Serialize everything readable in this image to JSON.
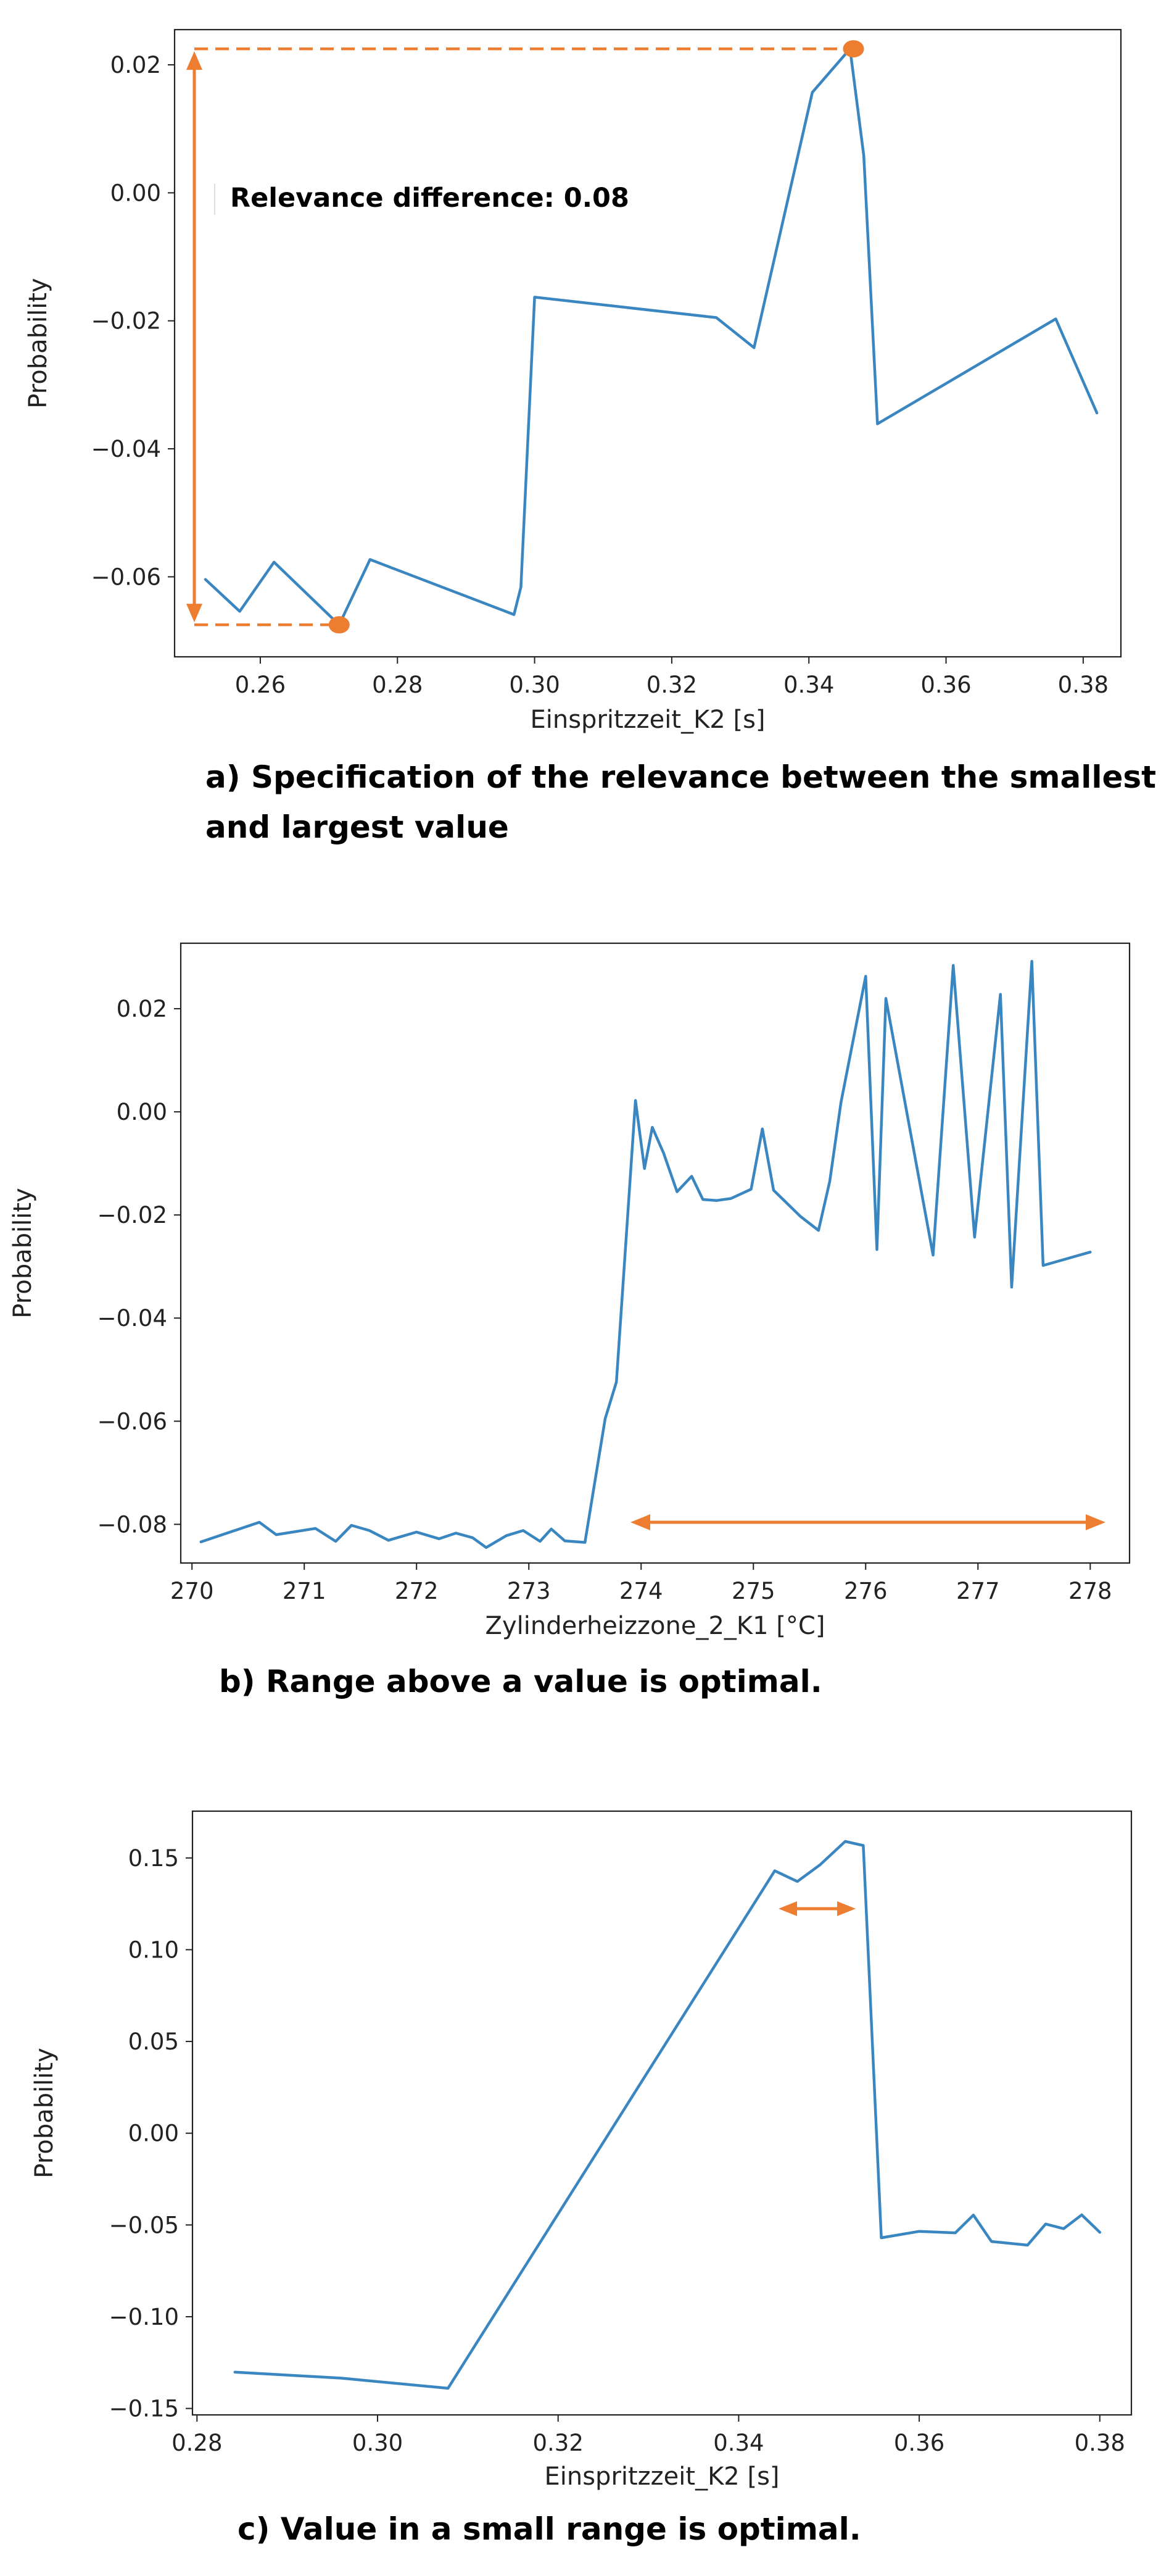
{
  "colors": {
    "series": "#3a86c0",
    "annotation": "#ed7d31",
    "axes": "#222222"
  },
  "chart_data": [
    {
      "type": "line",
      "panel": "a",
      "xlabel": "Einspritzzeit_K2 [s]",
      "ylabel": "Probability",
      "xlim": [
        0.2475,
        0.3855
      ],
      "ylim": [
        -0.0725,
        0.0255
      ],
      "xticks": [
        0.26,
        0.28,
        0.3,
        0.32,
        0.34,
        0.36,
        0.38
      ],
      "xtick_labels": [
        "0.26",
        "0.28",
        "0.30",
        "0.32",
        "0.34",
        "0.36",
        "0.38"
      ],
      "yticks": [
        -0.06,
        -0.04,
        -0.02,
        0.0,
        0.02
      ],
      "ytick_labels": [
        "−0.06",
        "−0.04",
        "−0.02",
        "0.00",
        "0.02"
      ],
      "series": [
        {
          "x": [
            0.252,
            0.257,
            0.262,
            0.2715,
            0.276,
            0.297,
            0.298,
            0.3,
            0.3265,
            0.332,
            0.3405,
            0.346,
            0.348,
            0.35,
            0.376,
            0.382
          ],
          "y": [
            -0.0604,
            -0.0654,
            -0.0577,
            -0.0675,
            -0.0573,
            -0.0659,
            -0.0616,
            -0.0163,
            -0.0195,
            -0.0242,
            0.0157,
            0.0225,
            0.0058,
            -0.0361,
            -0.0197,
            -0.0344
          ]
        }
      ],
      "markers": [
        {
          "x": 0.3465,
          "y": 0.0225
        },
        {
          "x": 0.2715,
          "y": -0.0675
        }
      ],
      "annotation_text": "Relevance difference: 0.08",
      "caption_lines": [
        "a) Specification of the relevance between the smallest",
        "and largest value"
      ]
    },
    {
      "type": "line",
      "panel": "b",
      "xlabel": "Zylinderheizzone_2_K1 [°C]",
      "ylabel": "Probability",
      "xlim": [
        269.9,
        278.35
      ],
      "ylim": [
        -0.0875,
        0.0327
      ],
      "xticks": [
        270,
        271,
        272,
        273,
        274,
        275,
        276,
        277,
        278
      ],
      "xtick_labels": [
        "270",
        "271",
        "272",
        "273",
        "274",
        "275",
        "276",
        "277",
        "278"
      ],
      "yticks": [
        -0.08,
        -0.06,
        -0.04,
        -0.02,
        0.0,
        0.02
      ],
      "yticks_labels_note": "",
      "ytick_labels": [
        "−0.08",
        "−0.06",
        "−0.04",
        "−0.02",
        "0.00",
        "0.02"
      ],
      "series": [
        {
          "x": [
            270.08,
            270.6,
            270.75,
            271.1,
            271.28,
            271.42,
            271.58,
            271.75,
            272.0,
            272.2,
            272.35,
            272.5,
            272.62,
            272.8,
            272.95,
            273.1,
            273.2,
            273.32,
            273.5,
            273.68,
            273.78,
            273.95,
            274.03,
            274.1,
            274.2,
            274.32,
            274.45,
            274.55,
            274.67,
            274.8,
            274.98,
            275.08,
            275.18,
            275.42,
            275.58,
            275.68,
            275.78,
            276.0,
            276.1,
            276.18,
            276.6,
            276.78,
            276.97,
            277.2,
            277.3,
            277.48,
            277.58,
            278.0
          ],
          "y": [
            -0.0834,
            -0.0796,
            -0.082,
            -0.0808,
            -0.0833,
            -0.0802,
            -0.0812,
            -0.0831,
            -0.0815,
            -0.0828,
            -0.0817,
            -0.0826,
            -0.0845,
            -0.0822,
            -0.0812,
            -0.0833,
            -0.0809,
            -0.0832,
            -0.0835,
            -0.0595,
            -0.0524,
            0.0022,
            -0.011,
            -0.003,
            -0.008,
            -0.0155,
            -0.0125,
            -0.017,
            -0.0172,
            -0.0168,
            -0.015,
            -0.0033,
            -0.0152,
            -0.0203,
            -0.023,
            -0.0135,
            0.0018,
            0.0263,
            -0.0267,
            0.022,
            -0.0278,
            0.0284,
            -0.0243,
            0.0228,
            -0.034,
            0.0292,
            -0.0298,
            -0.0272
          ]
        }
      ],
      "caption_lines": [
        "b) Range above a value is optimal."
      ]
    },
    {
      "type": "line",
      "panel": "c",
      "xlabel": "Einspritzzeit_K2 [s]",
      "ylabel": "Probability",
      "xlim": [
        0.2795,
        0.3835
      ],
      "ylim": [
        -0.1535,
        0.1755
      ],
      "xticks": [
        0.28,
        0.3,
        0.32,
        0.34,
        0.36,
        0.38
      ],
      "xtick_labels": [
        "0.28",
        "0.30",
        "0.32",
        "0.34",
        "0.36",
        "0.38"
      ],
      "yticks": [
        -0.15,
        -0.1,
        -0.05,
        0.0,
        0.05,
        0.1,
        0.15
      ],
      "ytick_labels": [
        "−0.15",
        "−0.10",
        "−0.05",
        "0.00",
        "0.05",
        "0.10",
        "0.15"
      ],
      "series": [
        {
          "x": [
            0.2842,
            0.296,
            0.3078,
            0.344,
            0.3465,
            0.349,
            0.3518,
            0.3538,
            0.3558,
            0.36,
            0.364,
            0.366,
            0.368,
            0.372,
            0.374,
            0.376,
            0.378,
            0.38
          ],
          "y": [
            -0.1302,
            -0.1335,
            -0.139,
            0.143,
            0.1372,
            0.1462,
            0.159,
            0.1568,
            -0.057,
            -0.0535,
            -0.0543,
            -0.0446,
            -0.059,
            -0.061,
            -0.0495,
            -0.052,
            -0.0445,
            -0.054
          ]
        }
      ],
      "caption_lines": [
        "c) Value in a small range is optimal."
      ]
    }
  ]
}
